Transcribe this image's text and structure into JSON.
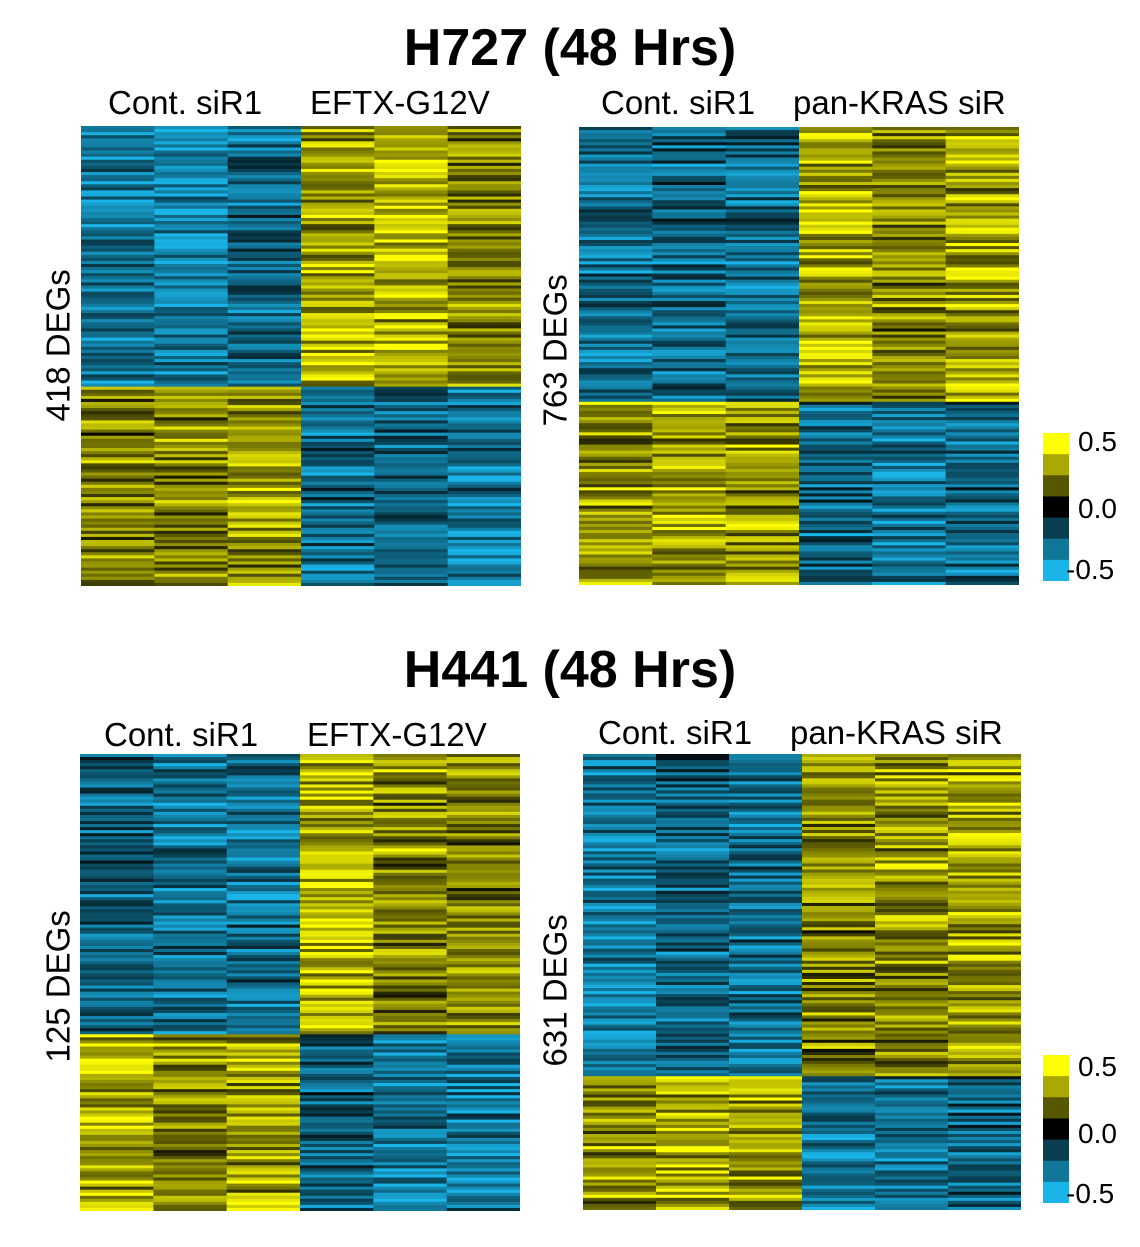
{
  "colors": {
    "blue": "#1ab4e8",
    "dark": "#000000",
    "yellow": "#ffff00",
    "midblue": "#0e6f8c",
    "olive": "#5c5c00"
  },
  "chart_data": [
    {
      "type": "heatmap",
      "panel": "H727 left",
      "title": "H727 (48 Hrs)",
      "group_labels": [
        "Cont. siR1",
        "EFTX-G12V"
      ],
      "columns": 6,
      "ylabel": "418 DEGs",
      "split_fraction": 0.565,
      "blocks": [
        {
          "rows": "upper",
          "columns": [
            1,
            2,
            3
          ],
          "mean_value": -0.3
        },
        {
          "rows": "upper",
          "columns": [
            4,
            5,
            6
          ],
          "mean_value": 0.3
        },
        {
          "rows": "lower",
          "columns": [
            1,
            2,
            3
          ],
          "mean_value": 0.3
        },
        {
          "rows": "lower",
          "columns": [
            4,
            5,
            6
          ],
          "mean_value": -0.3
        }
      ],
      "color_scale": {
        "ticks": [
          0.5,
          0.0,
          -0.5
        ],
        "range": [
          -0.5,
          0.5
        ]
      }
    },
    {
      "type": "heatmap",
      "panel": "H727 right",
      "title": "H727 (48 Hrs)",
      "group_labels": [
        "Cont. siR1",
        "pan-KRAS siR"
      ],
      "columns": 6,
      "ylabel": "763 DEGs",
      "split_fraction": 0.6,
      "blocks": [
        {
          "rows": "upper",
          "columns": [
            1,
            2,
            3
          ],
          "mean_value": -0.3
        },
        {
          "rows": "upper",
          "columns": [
            4,
            5,
            6
          ],
          "mean_value": 0.3
        },
        {
          "rows": "lower",
          "columns": [
            1,
            2,
            3
          ],
          "mean_value": 0.3
        },
        {
          "rows": "lower",
          "columns": [
            4,
            5,
            6
          ],
          "mean_value": -0.3
        }
      ],
      "color_scale": {
        "ticks": [
          0.5,
          0.0,
          -0.5
        ],
        "range": [
          -0.5,
          0.5
        ]
      }
    },
    {
      "type": "heatmap",
      "panel": "H441 left",
      "title": "H441 (48 Hrs)",
      "group_labels": [
        "Cont. siR1",
        "EFTX-G12V"
      ],
      "columns": 6,
      "ylabel": "125 DEGs",
      "split_fraction": 0.61,
      "blocks": [
        {
          "rows": "upper",
          "columns": [
            1,
            2,
            3
          ],
          "mean_value": -0.3
        },
        {
          "rows": "upper",
          "columns": [
            4,
            5,
            6
          ],
          "mean_value": 0.3
        },
        {
          "rows": "lower",
          "columns": [
            1,
            2,
            3
          ],
          "mean_value": 0.3
        },
        {
          "rows": "lower",
          "columns": [
            4,
            5,
            6
          ],
          "mean_value": -0.3
        }
      ],
      "color_scale": {
        "ticks": [
          0.5,
          0.0,
          -0.5
        ],
        "range": [
          -0.5,
          0.5
        ]
      }
    },
    {
      "type": "heatmap",
      "panel": "H441 right",
      "title": "H441 (48 Hrs)",
      "group_labels": [
        "Cont. siR1",
        "pan-KRAS siR"
      ],
      "columns": 6,
      "ylabel": "631 DEGs",
      "split_fraction": 0.705,
      "blocks": [
        {
          "rows": "upper",
          "columns": [
            1,
            2,
            3
          ],
          "mean_value": -0.3
        },
        {
          "rows": "upper",
          "columns": [
            4,
            5,
            6
          ],
          "mean_value": 0.3
        },
        {
          "rows": "lower",
          "columns": [
            1,
            2,
            3
          ],
          "mean_value": 0.3
        },
        {
          "rows": "lower",
          "columns": [
            4,
            5,
            6
          ],
          "mean_value": -0.3
        }
      ],
      "color_scale": {
        "ticks": [
          0.5,
          0.0,
          -0.5
        ],
        "range": [
          -0.5,
          0.5
        ]
      }
    }
  ],
  "titles": {
    "top": "H727 (48 Hrs)",
    "bottom": "H441 (48 Hrs)"
  },
  "scale_labels": {
    "high": "0.5",
    "mid": "0.0",
    "low": "-0.5"
  }
}
